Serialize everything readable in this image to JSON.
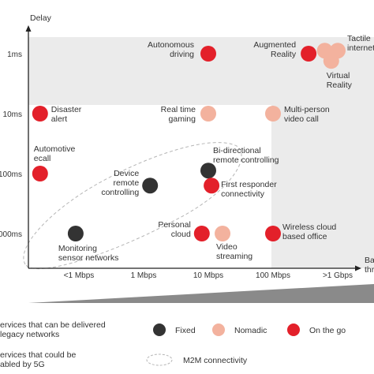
{
  "chart_data": {
    "type": "scatter",
    "title": "",
    "ylabel": "Delay",
    "xlabel": "Ba\nthr",
    "x_categories": [
      "<1 Mbps",
      "1 Mbps",
      "10 Mbps",
      "100 Mbps",
      ">1 Gbps"
    ],
    "y_categories": [
      "1ms",
      "10ms",
      "100ms",
      "000ms"
    ],
    "categories_colors": {
      "Fixed": "#333333",
      "Nomadic": "#f3b29e",
      "On the go": "#e3202a"
    },
    "shaded_region_color": "#ebebeb",
    "points": [
      {
        "label": "Autonomous\ndriving",
        "x": 2.0,
        "y": 0.0,
        "category": "On the go"
      },
      {
        "label": "Augmented\nReality",
        "x": 3.55,
        "y": 0.0,
        "category": "On the go"
      },
      {
        "label": "",
        "x": 3.8,
        "y": -0.05,
        "category": "Nomadic"
      },
      {
        "label": "Tactile\ninternet",
        "x": 4.0,
        "y": -0.05,
        "category": "Nomadic"
      },
      {
        "label": "Virtual\nReality",
        "x": 3.9,
        "y": 0.12,
        "category": "Nomadic"
      },
      {
        "label": "Disaster\nalert",
        "x": -0.6,
        "y": 1.0,
        "category": "On the go"
      },
      {
        "label": "Real time\ngaming",
        "x": 2.0,
        "y": 1.0,
        "category": "Nomadic"
      },
      {
        "label": "Multi-person\nvideo call",
        "x": 3.0,
        "y": 1.0,
        "category": "Nomadic"
      },
      {
        "label": "Automotive\necall",
        "x": -0.6,
        "y": 2.0,
        "category": "On the go"
      },
      {
        "label": "Device\nremote\ncontrolling",
        "x": 1.1,
        "y": 2.2,
        "category": "Fixed"
      },
      {
        "label": "Bi-directional\nremote controlling",
        "x": 2.0,
        "y": 1.95,
        "category": "Fixed"
      },
      {
        "label": "First responder\nconnectivity",
        "x": 2.05,
        "y": 2.2,
        "category": "On the go"
      },
      {
        "label": "Monitoring\nsensor networks",
        "x": -0.05,
        "y": 3.0,
        "category": "Fixed"
      },
      {
        "label": "Personal\ncloud",
        "x": 1.9,
        "y": 3.0,
        "category": "On the go"
      },
      {
        "label": "Video\nstreaming",
        "x": 2.22,
        "y": 3.0,
        "category": "Nomadic"
      },
      {
        "label": "Wireless cloud\nbased office",
        "x": 3.0,
        "y": 3.0,
        "category": "On the go"
      }
    ],
    "legend": [
      {
        "text": "ervices that can be delivered\nlegacy networks",
        "swatch": "none"
      },
      {
        "text": "ervices that could be\nabled by 5G",
        "swatch": "none"
      },
      {
        "text": "Fixed",
        "swatch": "Fixed"
      },
      {
        "text": "Nomadic",
        "swatch": "Nomadic"
      },
      {
        "text": "On the go",
        "swatch": "On the go"
      },
      {
        "text": "M2M connectivity",
        "swatch": "dashed-ellipse"
      }
    ],
    "grid": false
  }
}
